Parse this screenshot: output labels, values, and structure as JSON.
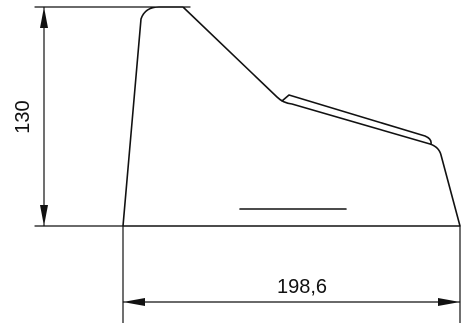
{
  "dimensions": {
    "height_label": "130",
    "width_label": "198,6"
  },
  "colors": {
    "stroke": "#111111",
    "background": "#ffffff"
  }
}
